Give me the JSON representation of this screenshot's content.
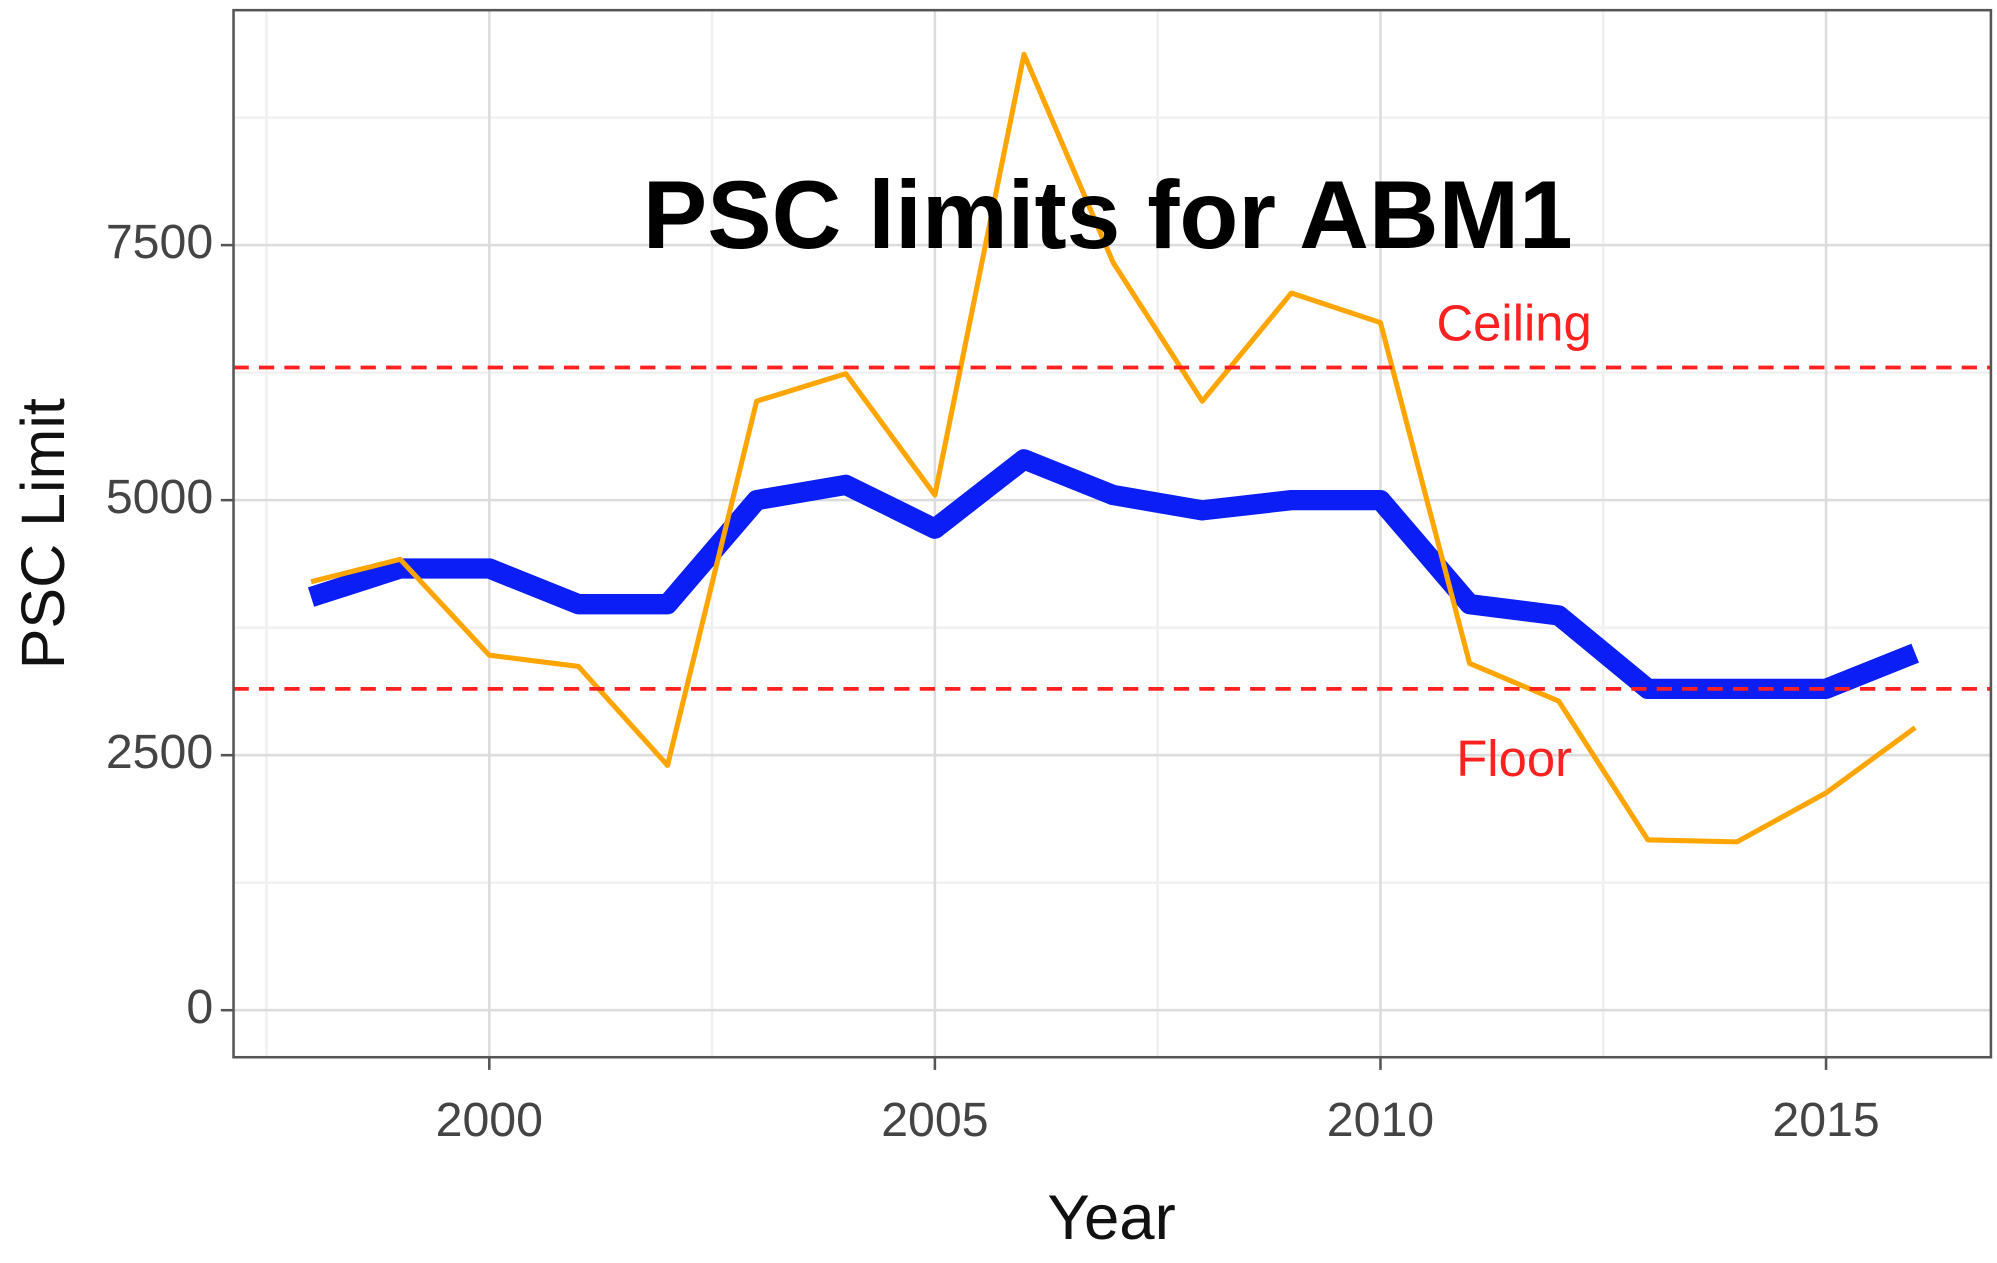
{
  "chart_data": {
    "type": "line",
    "title": "PSC limits for ABM1",
    "x_label": "Year",
    "y_label": "PSC Limit",
    "x": [
      1998,
      1999,
      2000,
      2001,
      2002,
      2003,
      2004,
      2005,
      2006,
      2007,
      2008,
      2009,
      2010,
      2011,
      2012,
      2013,
      2014,
      2015,
      2016
    ],
    "series": [
      {
        "color": "#0a1ef5",
        "values": [
          4050,
          4330,
          4330,
          3980,
          3980,
          5000,
          5150,
          4720,
          5400,
          5050,
          4900,
          5000,
          5000,
          3980,
          3870,
          3150,
          3150,
          3150,
          3500
        ]
      },
      {
        "color": "#ffa500",
        "values": [
          4200,
          4420,
          3480,
          3370,
          2400,
          5970,
          6240,
          5050,
          9370,
          7330,
          5970,
          7030,
          6740,
          3400,
          3030,
          1670,
          1650,
          2130,
          2770
        ]
      }
    ],
    "reference_lines": [
      {
        "label": "Ceiling",
        "value": 6300,
        "color": "#ff2020"
      },
      {
        "label": "Floor",
        "value": 3150,
        "color": "#ff2020"
      }
    ],
    "xlim": [
      1997.13,
      2016.85
    ],
    "ylim": [
      -461,
      9803
    ],
    "xticks": [
      2000,
      2005,
      2010,
      2015
    ],
    "yticks": [
      0,
      2500,
      5000,
      7500
    ],
    "grid": true
  }
}
